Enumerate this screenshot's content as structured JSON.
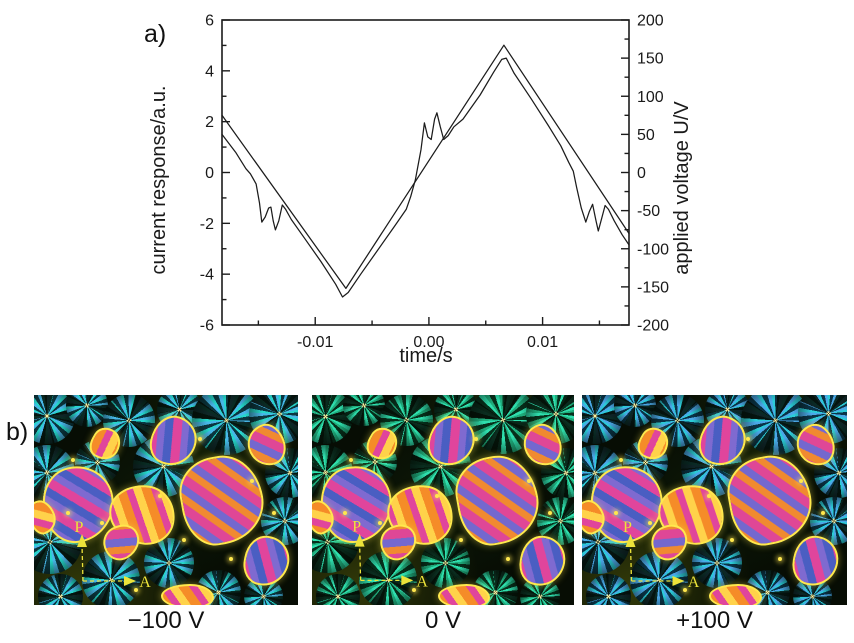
{
  "figure": {
    "panel_a_label": "a)",
    "panel_b_label": "b)"
  },
  "chart_data": {
    "type": "line",
    "title": "",
    "xlabel": "time/s",
    "ylabel_left": "current response/a.u.",
    "ylabel_right": "applied voltage U/V",
    "xlim": [
      -0.0182,
      0.0176
    ],
    "ylim_left": [
      -6,
      6
    ],
    "ylim_right": [
      -200,
      200
    ],
    "grid": false,
    "legend": "none",
    "x_major_ticks": [
      -0.01,
      0.0,
      0.01
    ],
    "x_tick_labels": [
      "-0.01",
      "0.00",
      "0.01"
    ],
    "x_minor_ticks": [
      -0.015,
      -0.005,
      0.005,
      0.015
    ],
    "y_left_major_ticks": [
      -6,
      -4,
      -2,
      0,
      2,
      4,
      6
    ],
    "y_left_tick_labels": [
      "-6",
      "-4",
      "-2",
      "0",
      "2",
      "4",
      "6"
    ],
    "y_left_minor_ticks": [
      -5,
      -3,
      -1,
      1,
      3,
      5
    ],
    "y_right_major_ticks": [
      -200,
      -150,
      -100,
      -50,
      0,
      50,
      100,
      150,
      200
    ],
    "y_right_tick_labels": [
      "-200",
      "-150",
      "-100",
      "-50",
      "0",
      "50",
      "100",
      "150",
      "200"
    ],
    "y_right_minor_ticks": [
      -175,
      -125,
      -75,
      -25,
      25,
      75,
      125,
      175
    ],
    "line_color": "#1c1c1c",
    "series": [
      {
        "name": "applied voltage",
        "axis": "right",
        "color": "#1c1c1c",
        "x": [
          -0.0182,
          -0.0073,
          0.0066,
          0.0176
        ],
        "y": [
          75,
          -152,
          167,
          -80
        ]
      },
      {
        "name": "current response",
        "axis": "left",
        "color": "#1c1c1c",
        "x": [
          -0.0182,
          -0.017,
          -0.0161,
          -0.0157,
          -0.0152,
          -0.0149,
          -0.0147,
          -0.0144,
          -0.0141,
          -0.0139,
          -0.0137,
          -0.0135,
          -0.0132,
          -0.0129,
          -0.0126,
          -0.0121,
          -0.011,
          -0.0095,
          -0.0082,
          -0.0076,
          -0.0071,
          -0.006,
          -0.0045,
          -0.003,
          -0.002,
          -0.0016,
          -0.0012,
          -0.0007,
          -0.0004,
          -0.0001,
          0.0002,
          0.0005,
          0.0007,
          0.001,
          0.0013,
          0.0017,
          0.0022,
          0.003,
          0.0045,
          0.0057,
          0.0064,
          0.0068,
          0.0075,
          0.009,
          0.0105,
          0.0116,
          0.0123,
          0.0127,
          0.013,
          0.0134,
          0.0138,
          0.0141,
          0.0144,
          0.0147,
          0.0149,
          0.0152,
          0.0155,
          0.0158,
          0.0163,
          0.017,
          0.0176
        ],
        "y": [
          1.5,
          0.8,
          0.15,
          -0.05,
          -0.45,
          -1.2,
          -1.95,
          -1.75,
          -1.4,
          -1.36,
          -1.9,
          -2.26,
          -1.9,
          -1.28,
          -1.45,
          -1.85,
          -2.55,
          -3.5,
          -4.4,
          -4.9,
          -4.72,
          -4.0,
          -3.05,
          -2.1,
          -1.45,
          -0.95,
          -0.3,
          0.9,
          1.95,
          1.4,
          1.3,
          2.1,
          2.35,
          1.8,
          1.3,
          1.45,
          1.8,
          2.1,
          3.05,
          3.95,
          4.45,
          4.5,
          3.9,
          2.9,
          1.85,
          1.05,
          0.4,
          0.05,
          -0.6,
          -1.4,
          -1.95,
          -1.55,
          -1.25,
          -1.9,
          -2.3,
          -1.8,
          -1.3,
          -1.45,
          -1.9,
          -2.45,
          -2.85
        ]
      }
    ]
  },
  "micrographs": {
    "annotations": {
      "polarizer": "P",
      "analyzer": "A",
      "color": "#ece33a"
    },
    "palette": {
      "background": "#070d04",
      "cross_dark": "#040e06",
      "center_dot": "#fff0a0",
      "rim_yellow": "#ffe84d",
      "blob_schemes": {
        "pink": [
          "#e0459c",
          "#7f6ad0",
          "#4a5ec2"
        ],
        "orange": [
          "#f58c28",
          "#e0459c",
          "#ffd24a"
        ],
        "stripe": [
          "#df4796",
          "#f08a30",
          "#7468ce"
        ]
      }
    },
    "images": [
      {
        "label": "−100 V",
        "fan_palette": [
          "#47b7e8",
          "#27d6cc",
          "#0b3640"
        ]
      },
      {
        "label": "0 V",
        "fan_palette": [
          "#2fdfae",
          "#1fae7d",
          "#07301c"
        ]
      },
      {
        "label": "+100 V",
        "fan_palette": [
          "#4aa8e8",
          "#2ccbd8",
          "#0a3347"
        ]
      }
    ]
  }
}
